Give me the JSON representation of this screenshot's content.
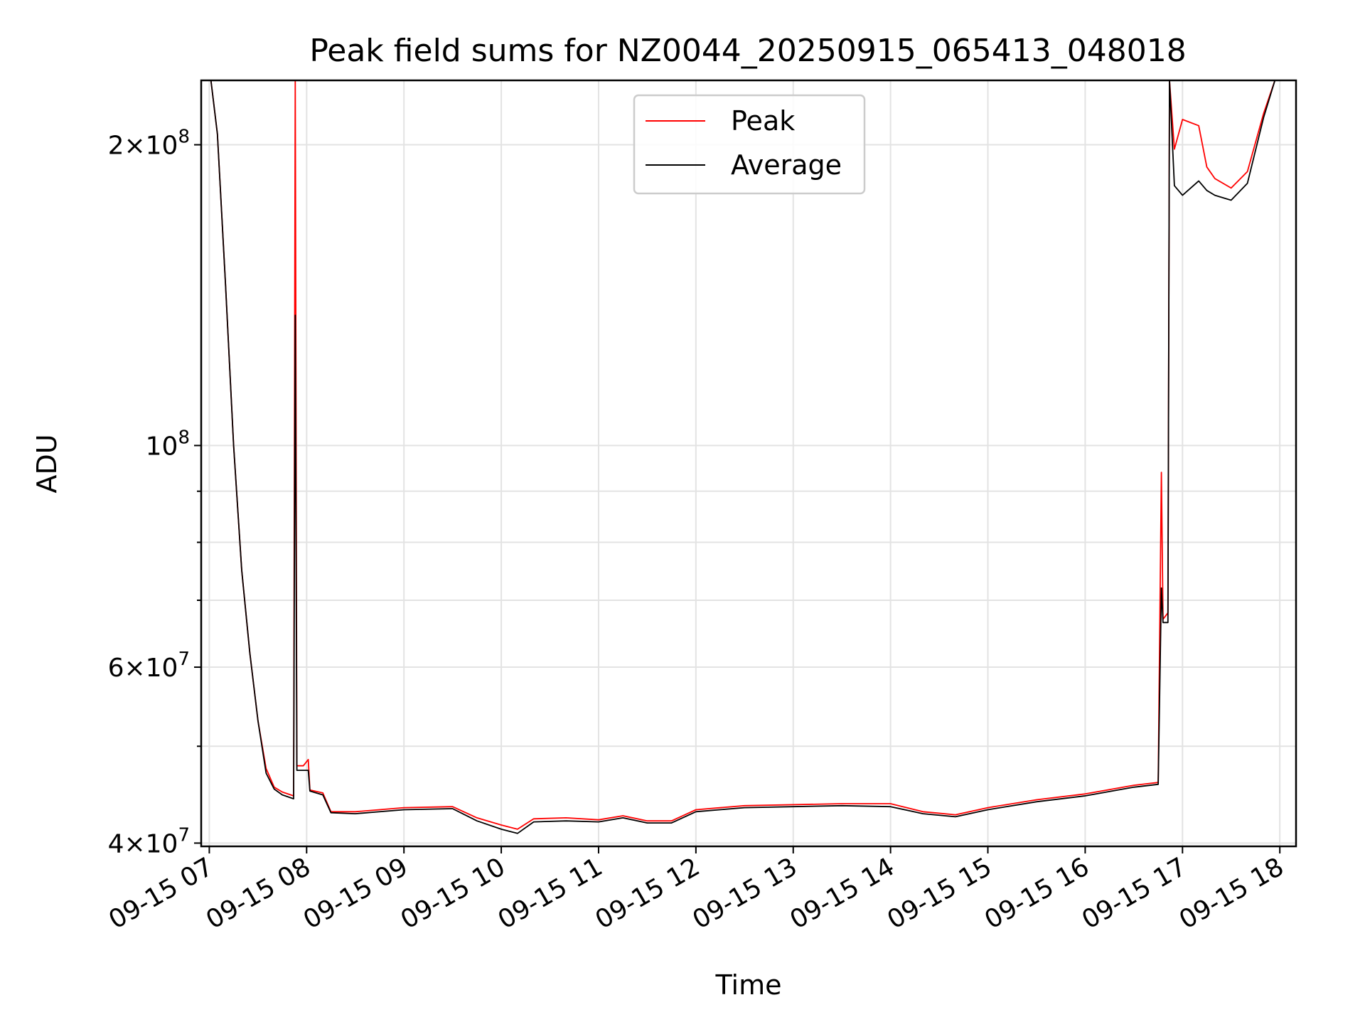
{
  "chart_data": {
    "type": "line",
    "title": "Peak field sums for NZ0044_20250915_065413_048018",
    "xlabel": "Time",
    "ylabel": "ADU",
    "y_scale": "log",
    "grid": true,
    "legend_position": "top-center",
    "x_range": [
      "09-15 06:55",
      "09-15 18:10"
    ],
    "ylim": [
      39700000,
      232000000
    ],
    "x_ticks": [
      "09-15 07",
      "09-15 08",
      "09-15 09",
      "09-15 10",
      "09-15 11",
      "09-15 12",
      "09-15 13",
      "09-15 14",
      "09-15 15",
      "09-15 16",
      "09-15 17",
      "09-15 18"
    ],
    "y_ticks": [
      {
        "value": 40000000,
        "mantissa": "4",
        "exponent": "7"
      },
      {
        "value": 60000000,
        "mantissa": "6",
        "exponent": "7"
      },
      {
        "value": 100000000,
        "mantissa": "",
        "exponent": "8"
      },
      {
        "value": 200000000,
        "mantissa": "2",
        "exponent": "8"
      }
    ],
    "series": [
      {
        "name": "Peak",
        "color": "#ff0000",
        "points": [
          [
            "09-15 06:55",
            232000000
          ],
          [
            "09-15 07:01",
            232000000
          ],
          [
            "09-15 07:05",
            205000000
          ],
          [
            "09-15 07:10",
            145000000
          ],
          [
            "09-15 07:15",
            100000000
          ],
          [
            "09-15 07:20",
            75000000
          ],
          [
            "09-15 07:25",
            62000000
          ],
          [
            "09-15 07:30",
            53000000
          ],
          [
            "09-15 07:35",
            47500000
          ],
          [
            "09-15 07:40",
            45500000
          ],
          [
            "09-15 07:45",
            45000000
          ],
          [
            "09-15 07:52",
            44600000
          ],
          [
            "09-15 07:53",
            232000000
          ],
          [
            "09-15 07:54",
            47800000
          ],
          [
            "09-15 07:58",
            47800000
          ],
          [
            "09-15 08:01",
            48500000
          ],
          [
            "09-15 08:02",
            45200000
          ],
          [
            "09-15 08:10",
            44900000
          ],
          [
            "09-15 08:15",
            43000000
          ],
          [
            "09-15 08:30",
            43000000
          ],
          [
            "09-15 09:00",
            43400000
          ],
          [
            "09-15 09:30",
            43500000
          ],
          [
            "09-15 09:45",
            42400000
          ],
          [
            "09-15 10:00",
            41700000
          ],
          [
            "09-15 10:10",
            41300000
          ],
          [
            "09-15 10:20",
            42300000
          ],
          [
            "09-15 10:40",
            42400000
          ],
          [
            "09-15 11:00",
            42200000
          ],
          [
            "09-15 11:15",
            42600000
          ],
          [
            "09-15 11:30",
            42100000
          ],
          [
            "09-15 11:45",
            42100000
          ],
          [
            "09-15 12:00",
            43200000
          ],
          [
            "09-15 12:30",
            43600000
          ],
          [
            "09-15 13:00",
            43700000
          ],
          [
            "09-15 13:30",
            43800000
          ],
          [
            "09-15 14:00",
            43800000
          ],
          [
            "09-15 14:20",
            43000000
          ],
          [
            "09-15 14:40",
            42700000
          ],
          [
            "09-15 15:00",
            43400000
          ],
          [
            "09-15 15:30",
            44200000
          ],
          [
            "09-15 16:00",
            44800000
          ],
          [
            "09-15 16:30",
            45700000
          ],
          [
            "09-15 16:45",
            46000000
          ],
          [
            "09-15 16:47",
            94000000
          ],
          [
            "09-15 16:48",
            67000000
          ],
          [
            "09-15 16:51",
            68000000
          ],
          [
            "09-15 16:52",
            232000000
          ],
          [
            "09-15 16:55",
            198000000
          ],
          [
            "09-15 17:00",
            212000000
          ],
          [
            "09-15 17:10",
            209000000
          ],
          [
            "09-15 17:15",
            190000000
          ],
          [
            "09-15 17:20",
            185000000
          ],
          [
            "09-15 17:30",
            181000000
          ],
          [
            "09-15 17:40",
            188000000
          ],
          [
            "09-15 17:50",
            215000000
          ],
          [
            "09-15 17:57",
            232000000
          ],
          [
            "09-15 18:10",
            232000000
          ]
        ]
      },
      {
        "name": "Average",
        "color": "#000000",
        "points": [
          [
            "09-15 06:55",
            232000000
          ],
          [
            "09-15 07:01",
            232000000
          ],
          [
            "09-15 07:05",
            205000000
          ],
          [
            "09-15 07:10",
            145000000
          ],
          [
            "09-15 07:15",
            100000000
          ],
          [
            "09-15 07:20",
            75000000
          ],
          [
            "09-15 07:25",
            62000000
          ],
          [
            "09-15 07:30",
            53000000
          ],
          [
            "09-15 07:35",
            47000000
          ],
          [
            "09-15 07:40",
            45300000
          ],
          [
            "09-15 07:45",
            44700000
          ],
          [
            "09-15 07:52",
            44300000
          ],
          [
            "09-15 07:53",
            135000000
          ],
          [
            "09-15 07:54",
            47300000
          ],
          [
            "09-15 08:01",
            47300000
          ],
          [
            "09-15 08:02",
            45100000
          ],
          [
            "09-15 08:10",
            44700000
          ],
          [
            "09-15 08:15",
            42900000
          ],
          [
            "09-15 08:30",
            42800000
          ],
          [
            "09-15 09:00",
            43200000
          ],
          [
            "09-15 09:30",
            43300000
          ],
          [
            "09-15 09:45",
            42100000
          ],
          [
            "09-15 10:00",
            41300000
          ],
          [
            "09-15 10:10",
            40900000
          ],
          [
            "09-15 10:20",
            42000000
          ],
          [
            "09-15 10:40",
            42100000
          ],
          [
            "09-15 11:00",
            42000000
          ],
          [
            "09-15 11:15",
            42400000
          ],
          [
            "09-15 11:30",
            41900000
          ],
          [
            "09-15 11:45",
            41900000
          ],
          [
            "09-15 12:00",
            43000000
          ],
          [
            "09-15 12:30",
            43400000
          ],
          [
            "09-15 13:00",
            43500000
          ],
          [
            "09-15 13:30",
            43600000
          ],
          [
            "09-15 14:00",
            43500000
          ],
          [
            "09-15 14:20",
            42800000
          ],
          [
            "09-15 14:40",
            42500000
          ],
          [
            "09-15 15:00",
            43200000
          ],
          [
            "09-15 15:30",
            44000000
          ],
          [
            "09-15 16:00",
            44600000
          ],
          [
            "09-15 16:30",
            45500000
          ],
          [
            "09-15 16:45",
            45800000
          ],
          [
            "09-15 16:47",
            72000000
          ],
          [
            "09-15 16:48",
            66500000
          ],
          [
            "09-15 16:51",
            66500000
          ],
          [
            "09-15 16:52",
            232000000
          ],
          [
            "09-15 16:55",
            182000000
          ],
          [
            "09-15 17:00",
            178000000
          ],
          [
            "09-15 17:10",
            184000000
          ],
          [
            "09-15 17:15",
            180000000
          ],
          [
            "09-15 17:20",
            178000000
          ],
          [
            "09-15 17:30",
            176000000
          ],
          [
            "09-15 17:40",
            183000000
          ],
          [
            "09-15 17:50",
            213000000
          ],
          [
            "09-15 17:57",
            232000000
          ],
          [
            "09-15 18:10",
            232000000
          ]
        ]
      }
    ]
  }
}
